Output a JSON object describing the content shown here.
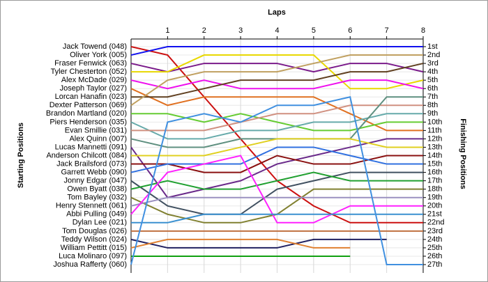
{
  "chart_data": {
    "type": "line",
    "title": "Laps",
    "y_label": "Starting Positions",
    "y2_label": "Finishing Positions",
    "x": [
      0,
      1,
      2,
      3,
      4,
      5,
      6,
      7,
      8
    ],
    "xlim": [
      0,
      8
    ],
    "xticks": [
      1,
      2,
      3,
      4,
      5,
      6,
      7,
      8
    ],
    "ylim": [
      27,
      1
    ],
    "y2lim": [
      27,
      1
    ],
    "y2ticks": [
      {
        "value": 1,
        "label": "1st"
      },
      {
        "value": 2,
        "label": "2nd"
      },
      {
        "value": 3,
        "label": "3rd"
      },
      {
        "value": 4,
        "label": "4th"
      },
      {
        "value": 5,
        "label": "5th"
      },
      {
        "value": 6,
        "label": "6th"
      },
      {
        "value": 7,
        "label": "7th"
      },
      {
        "value": 8,
        "label": "8th"
      },
      {
        "value": 9,
        "label": "9th"
      },
      {
        "value": 10,
        "label": "10th"
      },
      {
        "value": 11,
        "label": "11th"
      },
      {
        "value": 12,
        "label": "12th"
      },
      {
        "value": 13,
        "label": "13th"
      },
      {
        "value": 14,
        "label": "14th"
      },
      {
        "value": 15,
        "label": "15th"
      },
      {
        "value": 16,
        "label": "16th"
      },
      {
        "value": 17,
        "label": "17th"
      },
      {
        "value": 18,
        "label": "18th"
      },
      {
        "value": 19,
        "label": "19th"
      },
      {
        "value": 20,
        "label": "20th"
      },
      {
        "value": 21,
        "label": "21st"
      },
      {
        "value": 22,
        "label": "22nd"
      },
      {
        "value": 23,
        "label": "23rd"
      },
      {
        "value": 24,
        "label": "24th"
      },
      {
        "value": 25,
        "label": "25th"
      },
      {
        "value": 26,
        "label": "26th"
      },
      {
        "value": 27,
        "label": "27th"
      }
    ],
    "grid": true,
    "series": [
      {
        "name": "Jack Towend (048)",
        "color": "#cc1010",
        "values": [
          1,
          2,
          7,
          12,
          17,
          20,
          22,
          22,
          22
        ]
      },
      {
        "name": "Oliver York (005)",
        "color": "#1010ee",
        "values": [
          2,
          1,
          1,
          1,
          1,
          1,
          1,
          1,
          1
        ]
      },
      {
        "name": "Fraser Fenwick (063)",
        "color": "#7a1a8a",
        "values": [
          3,
          4,
          3,
          3,
          3,
          4,
          3,
          3,
          4
        ]
      },
      {
        "name": "Tyler Chesterton (052)",
        "color": "#e8d800",
        "values": [
          4,
          4,
          2,
          2,
          2,
          2,
          6,
          6,
          5
        ]
      },
      {
        "name": "Alex McDade (029)",
        "color": "#ee10ee",
        "values": [
          5,
          6,
          5,
          6,
          6,
          6,
          5,
          5,
          6
        ]
      },
      {
        "name": "Joseph Taylor (027)",
        "color": "#e07020",
        "values": [
          6,
          8,
          7,
          7,
          7,
          7,
          9,
          11,
          11
        ]
      },
      {
        "name": "Lorcan Hanafin (023)",
        "color": "#604020",
        "values": [
          7,
          7,
          6,
          5,
          5,
          5,
          4,
          4,
          3
        ]
      },
      {
        "name": "Dexter Patterson (069)",
        "color": "#c0a060",
        "values": [
          8,
          5,
          4,
          4,
          4,
          3,
          2,
          2,
          2
        ]
      },
      {
        "name": "Brandon Martland (020)",
        "color": "#66cc33",
        "values": [
          9,
          9,
          10,
          9,
          10,
          11,
          11,
          10,
          10
        ]
      },
      {
        "name": "Piers Henderson (035)",
        "color": "#66aaaa",
        "values": [
          10,
          12,
          12,
          11,
          11,
          10,
          10,
          9,
          9
        ]
      },
      {
        "name": "Evan Smillie (031)",
        "color": "#d09080",
        "values": [
          11,
          11,
          11,
          10,
          9,
          9,
          8,
          8,
          8
        ]
      },
      {
        "name": "Alex Quinn (007)",
        "color": "#5f9080",
        "values": [
          12,
          13,
          13,
          12,
          12,
          12,
          12,
          7,
          7
        ]
      },
      {
        "name": "Lucas Mannetti (091)",
        "color": "#6a2a8a",
        "values": [
          13,
          19,
          18,
          17,
          15,
          14,
          13,
          12,
          12
        ]
      },
      {
        "name": "Anderson Chilcott (084)",
        "color": "#e0d020",
        "values": [
          14,
          14,
          14,
          13,
          12,
          12,
          12,
          13,
          13
        ]
      },
      {
        "name": "Jack Brailsford (073)",
        "color": "#8a1010",
        "values": [
          15,
          15,
          16,
          16,
          14,
          15,
          15,
          14,
          14
        ]
      },
      {
        "name": "Garrett Webb (090)",
        "color": "#3070e0",
        "values": [
          16,
          15,
          15,
          15,
          13,
          13,
          14,
          15,
          15
        ]
      },
      {
        "name": "Jonny Edgar (047)",
        "color": "#405060",
        "values": [
          17,
          20,
          21,
          21,
          18,
          17,
          16,
          16,
          16
        ]
      },
      {
        "name": "Owen Byatt (038)",
        "color": "#20a030",
        "values": [
          18,
          17,
          18,
          18,
          17,
          16,
          17,
          17,
          17
        ]
      },
      {
        "name": "Tom Bayley (032)",
        "color": "#808030",
        "values": [
          19,
          21,
          22,
          22,
          21,
          18,
          18,
          18,
          18
        ]
      },
      {
        "name": "Henry Stennett (061)",
        "color": "#9a90c0",
        "values": [
          20,
          19,
          19,
          19,
          19,
          19,
          19,
          19,
          19
        ]
      },
      {
        "name": "Abbi Pulling (049)",
        "color": "#ff20ff",
        "values": [
          21,
          16,
          15,
          14,
          22,
          22,
          20,
          20,
          20
        ]
      },
      {
        "name": "Dylan Lee (021)",
        "color": "#3a90d0",
        "values": [
          22,
          22,
          21,
          21,
          21,
          21,
          21,
          21,
          21
        ]
      },
      {
        "name": "Tom Douglas (026)",
        "color": "#c07040",
        "values": [
          23,
          23,
          23,
          23,
          23,
          23,
          23,
          23,
          23
        ]
      },
      {
        "name": "Teddy Wilson (024)",
        "color": "#202060",
        "values": [
          24,
          25,
          25,
          25,
          25,
          24,
          24,
          24,
          null
        ]
      },
      {
        "name": "William Pettitt (015)",
        "color": "#e08030",
        "values": [
          25,
          24,
          24,
          24,
          24,
          25,
          25,
          null,
          null
        ]
      },
      {
        "name": "Luca Molinaro (097)",
        "color": "#10a010",
        "values": [
          26,
          26,
          26,
          26,
          26,
          26,
          26,
          null,
          null
        ]
      },
      {
        "name": "Joshua Rafferty (060)",
        "color": "#4090e0",
        "values": [
          27,
          10,
          9,
          10,
          8,
          8,
          7,
          27,
          27
        ]
      }
    ]
  }
}
